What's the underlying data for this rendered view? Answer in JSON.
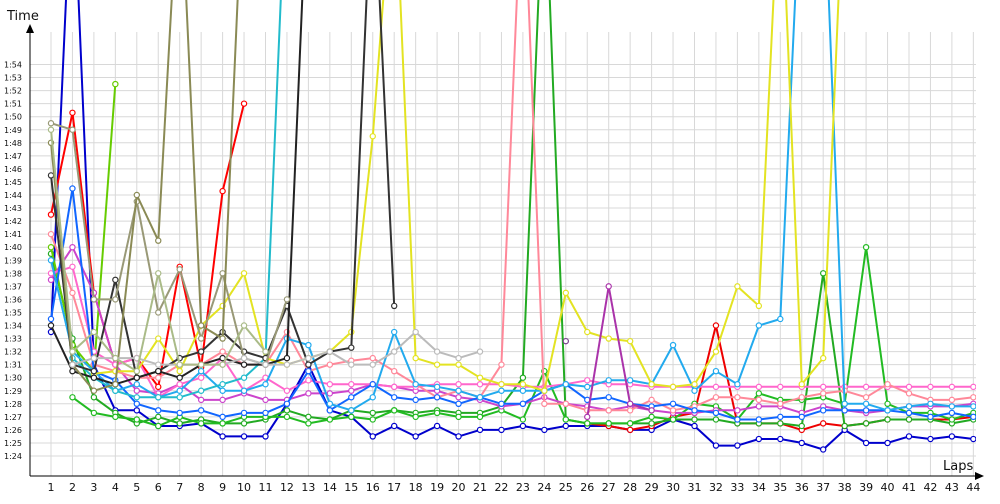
{
  "chart_data": {
    "type": "line",
    "xlabel": "Laps",
    "ylabel": "Time",
    "x": [
      1,
      2,
      3,
      4,
      5,
      6,
      7,
      8,
      9,
      10,
      11,
      12,
      13,
      14,
      15,
      16,
      17,
      18,
      19,
      20,
      21,
      22,
      23,
      24,
      25,
      26,
      27,
      28,
      29,
      30,
      31,
      32,
      33,
      34,
      35,
      36,
      37,
      38,
      39,
      40,
      41,
      42,
      43,
      44
    ],
    "y_ticks": [
      "1:24",
      "1:25",
      "1:26",
      "1:27",
      "1:28",
      "1:29",
      "1:30",
      "1:31",
      "1:32",
      "1:33",
      "1:34",
      "1:35",
      "1:36",
      "1:37",
      "1:38",
      "1:39",
      "1:40",
      "1:41",
      "1:42",
      "1:43",
      "1:44",
      "1:45",
      "1:46",
      "1:47",
      "1:48",
      "1:49",
      "1:50",
      "1:51",
      "1:52",
      "1:53",
      "1:54"
    ],
    "y_tick_seconds": [
      84,
      85,
      86,
      87,
      88,
      89,
      90,
      91,
      92,
      93,
      94,
      95,
      96,
      97,
      98,
      99,
      100,
      101,
      102,
      103,
      104,
      105,
      106,
      107,
      108,
      109,
      110,
      111,
      112,
      113,
      114
    ],
    "ylim_seconds": [
      82.5,
      115
    ],
    "grid": true,
    "legend": "none",
    "series": [
      {
        "color": "#0000cc",
        "values": [
          93.5,
          130,
          91,
          87.5,
          87.5,
          86.3,
          86.3,
          86.5,
          85.5,
          85.5,
          85.5,
          88,
          91,
          87.5,
          87,
          85.5,
          86.3,
          85.5,
          86.3,
          85.5,
          86,
          86,
          86.3,
          86,
          86.3,
          86.3,
          86.3,
          86,
          86,
          86.8,
          86.3,
          84.8,
          84.8,
          85.3,
          85.3,
          85,
          84.5,
          86,
          85,
          85,
          85.5,
          85.3,
          85.5,
          85.3
        ]
      },
      {
        "color": "#ff0000",
        "values": [
          102.5,
          110.3,
          96.5,
          91,
          91.5,
          89.3,
          98.5,
          90.8,
          104.3,
          111,
          null,
          null,
          null,
          null,
          null,
          null,
          null,
          null,
          null,
          null,
          null,
          null,
          null,
          null,
          null,
          null,
          null,
          null,
          null,
          null,
          null,
          null,
          null,
          null,
          null,
          null,
          null,
          null,
          null,
          null,
          null,
          null,
          null,
          null
        ]
      },
      {
        "color": "#ee0000",
        "values": [
          null,
          null,
          null,
          null,
          null,
          null,
          null,
          null,
          null,
          null,
          null,
          null,
          null,
          null,
          null,
          null,
          null,
          null,
          null,
          null,
          null,
          null,
          null,
          null,
          null,
          86.5,
          86.3,
          86,
          86.3,
          87,
          87.3,
          94,
          86.5,
          86.5,
          86.5,
          86,
          86.5,
          86.3,
          86.5,
          86.8,
          86.8,
          86.8,
          86.8,
          87
        ]
      },
      {
        "color": "#22aa22",
        "values": [
          99.5,
          93,
          88.5,
          87.3,
          86.5,
          87,
          86.5,
          86.8,
          86.5,
          86.5,
          86.8,
          87.5,
          87,
          86.8,
          87.5,
          87.3,
          87.5,
          87.3,
          87.5,
          87.3,
          87.3,
          87.8,
          90,
          130,
          86.8,
          86.5,
          86.5,
          86.5,
          86.5,
          86.8,
          86.8,
          86.8,
          86.5,
          86.5,
          86.5,
          86.3,
          98,
          86.3,
          86.5,
          86.8,
          86.8,
          86.8,
          86.5,
          86.8
        ]
      },
      {
        "color": "#22bb22",
        "values": [
          null,
          88.5,
          87.3,
          87,
          86.8,
          86.3,
          87,
          86.5,
          86.5,
          87,
          87,
          87,
          86.5,
          86.8,
          87,
          86.8,
          87.5,
          87,
          87.3,
          87,
          87,
          87.5,
          86.8,
          90.5,
          86.8,
          86.5,
          86.5,
          86.5,
          87,
          86.8,
          88,
          87.8,
          86.8,
          88.8,
          88.3,
          88.3,
          88.5,
          88,
          100,
          88,
          87.3,
          87.3,
          86.8,
          87.3
        ]
      },
      {
        "color": "#66cc00",
        "values": [
          100,
          92.5,
          90.5,
          112.5,
          null,
          null,
          null,
          null,
          null,
          null,
          null,
          null,
          null,
          null,
          null,
          null,
          null,
          null,
          null,
          null,
          null,
          null,
          null,
          null,
          null,
          null,
          null,
          null,
          null,
          null,
          null,
          null,
          null,
          null,
          null,
          null,
          null,
          null,
          null,
          null,
          null,
          null,
          null,
          null
        ]
      },
      {
        "color": "#cc44cc",
        "values": [
          97.5,
          100,
          96.5,
          91,
          89,
          88.8,
          89.5,
          88.3,
          88.3,
          88.8,
          88.3,
          88.3,
          88.8,
          88.8,
          89,
          89.5,
          89.3,
          89,
          89,
          88.5,
          88.3,
          87.8,
          88,
          88.5,
          88,
          87.8,
          87.5,
          87.8,
          87.5,
          87.3,
          87.3,
          87.5,
          87.5,
          87.8,
          87.8,
          87.3,
          87.8,
          87.5,
          87.3,
          87.5,
          87.8,
          87.8,
          87.8,
          88
        ]
      },
      {
        "color": "#ff66cc",
        "values": [
          98,
          98.5,
          92,
          91,
          91.5,
          88.5,
          89.5,
          90,
          91.5,
          89,
          90,
          89,
          89.8,
          89.5,
          89.5,
          89.5,
          89.3,
          89.3,
          89.5,
          89.5,
          89.5,
          89.5,
          89.3,
          89.3,
          89.5,
          89.8,
          89.5,
          89.5,
          89.3,
          89.3,
          89.3,
          89.3,
          89.3,
          89.3,
          89.3,
          89.3,
          89.3,
          89.3,
          89.3,
          89.3,
          89.3,
          89.3,
          89.3,
          89.3
        ]
      },
      {
        "color": "#ff8899",
        "values": [
          101,
          96.5,
          91,
          90.5,
          90,
          90,
          91,
          91,
          92,
          91,
          91,
          93.5,
          90.5,
          91,
          91.3,
          91.5,
          90.5,
          89.5,
          88.5,
          89,
          88.5,
          91,
          130,
          88,
          88,
          87.5,
          87.5,
          87.5,
          88.3,
          87.5,
          87.8,
          88.5,
          88.5,
          88.3,
          88,
          88.5,
          88.8,
          89,
          88.5,
          89.5,
          88.8,
          88.3,
          88.3,
          88.5
        ]
      },
      {
        "color": "#1166ff",
        "values": [
          94.5,
          104.5,
          90.5,
          89.8,
          88,
          87.5,
          87.3,
          87.5,
          87,
          87.3,
          87.3,
          88,
          90.5,
          87.5,
          88.5,
          89.5,
          88.5,
          88.3,
          88.5,
          88,
          88.5,
          88,
          88,
          89,
          89.5,
          88.3,
          88.5,
          88,
          87.8,
          88,
          87.5,
          87.3,
          86.8,
          86.8,
          87,
          87,
          87.5,
          87.5,
          87.5,
          87.5,
          87.3,
          87,
          87.3,
          87
        ]
      },
      {
        "color": "#22aaee",
        "values": [
          99,
          92,
          90.5,
          89,
          89.5,
          88.5,
          89,
          90.5,
          89,
          89,
          89.5,
          93,
          92.5,
          88,
          87.5,
          88.5,
          93.5,
          89.5,
          89.3,
          89,
          88.5,
          89,
          89,
          89,
          89.5,
          89.3,
          89.8,
          89.8,
          89.5,
          92.5,
          89,
          90.5,
          89.5,
          94,
          94.5,
          130,
          130,
          88,
          88,
          87.5,
          87.8,
          88,
          87.8,
          87.8
        ]
      },
      {
        "color": "#22bbcc",
        "values": [
          null,
          91.5,
          90,
          89,
          88.5,
          88.5,
          88.5,
          89,
          89.5,
          90,
          91.5,
          130,
          null,
          null,
          null,
          null,
          null,
          null,
          null,
          null,
          null,
          null,
          null,
          null,
          null,
          null,
          null,
          null,
          null,
          null,
          null,
          null,
          null,
          null,
          null,
          null,
          null,
          null,
          null,
          null,
          null,
          null,
          null,
          null
        ]
      },
      {
        "color": "#e3e322",
        "values": [
          null,
          null,
          90.3,
          90.5,
          90.5,
          93,
          90.5,
          94,
          95.5,
          98,
          91.5,
          91,
          91.5,
          92,
          93.5,
          108.5,
          130,
          91.5,
          91,
          91,
          90,
          89.5,
          89.5,
          89,
          96.5,
          93.5,
          93,
          92.8,
          89.5,
          89.3,
          89.5,
          92,
          97,
          95.5,
          130,
          89.5,
          91.5,
          130,
          null,
          null,
          null,
          null,
          null,
          null
        ]
      },
      {
        "color": "#333333",
        "values": [
          105.5,
          91,
          90.5,
          97.5,
          90,
          90.5,
          91.5,
          92,
          93.5,
          92,
          91.5,
          95.5,
          91,
          92,
          92.3,
          130,
          95.5,
          null,
          null,
          null,
          null,
          null,
          null,
          null,
          null,
          null,
          null,
          null,
          null,
          null,
          null,
          null,
          null,
          null,
          null,
          null,
          null,
          null,
          null,
          null,
          null,
          null,
          null,
          null
        ]
      },
      {
        "color": "#222222",
        "values": [
          94,
          90.5,
          90,
          89.5,
          90,
          90.5,
          90,
          91,
          91.5,
          91,
          91,
          91.5,
          130,
          null,
          null,
          null,
          null,
          null,
          null,
          null,
          null,
          null,
          null,
          null,
          null,
          null,
          null,
          null,
          null,
          null,
          null,
          null,
          null,
          null,
          null,
          null,
          null,
          null,
          null,
          null,
          null,
          null,
          null,
          null
        ]
      },
      {
        "color": "#999977",
        "values": [
          109.5,
          109,
          96,
          96,
          103.5,
          95,
          98.3,
          93,
          98,
          91.5,
          91,
          96,
          null,
          null,
          null,
          null,
          null,
          null,
          null,
          null,
          null,
          null,
          null,
          null,
          null,
          null,
          null,
          null,
          null,
          null,
          null,
          null,
          null,
          null,
          null,
          null,
          null,
          null,
          null,
          null,
          null,
          null,
          null,
          null
        ]
      },
      {
        "color": "#8a8a55",
        "values": [
          108,
          91,
          89,
          89.5,
          104,
          100.5,
          130,
          94,
          93,
          130,
          null,
          null,
          null,
          null,
          null,
          null,
          null,
          null,
          null,
          null,
          null,
          null,
          null,
          null,
          null,
          null,
          null,
          null,
          null,
          null,
          null,
          null,
          null,
          null,
          null,
          null,
          null,
          null,
          null,
          null,
          null,
          null,
          null,
          null
        ]
      },
      {
        "color": "#bbbbbb",
        "values": [
          null,
          91,
          91.5,
          91.5,
          91.5,
          91,
          91,
          91,
          91,
          91.5,
          91,
          91,
          91.5,
          92,
          91,
          91,
          92,
          93.5,
          92,
          91.5,
          92,
          null,
          null,
          null,
          null,
          null,
          null,
          null,
          null,
          null,
          null,
          null,
          null,
          null,
          null,
          null,
          null,
          null,
          null,
          null,
          null,
          null,
          null,
          null
        ]
      },
      {
        "color": "#aabb88",
        "values": [
          109,
          92,
          93.5,
          91.5,
          90.5,
          98,
          91,
          91,
          91,
          94,
          92,
          null,
          null,
          null,
          null,
          null,
          null,
          null,
          null,
          null,
          null,
          null,
          null,
          null,
          null,
          null,
          null,
          null,
          null,
          null,
          null,
          null,
          null,
          null,
          null,
          null,
          null,
          null,
          null,
          null,
          null,
          null,
          null,
          null
        ]
      },
      {
        "color": "#7b3f8f",
        "values": [
          null,
          null,
          null,
          null,
          null,
          null,
          null,
          null,
          null,
          null,
          null,
          null,
          null,
          null,
          null,
          null,
          null,
          null,
          null,
          null,
          null,
          null,
          null,
          null,
          92.8,
          null,
          null,
          null,
          null,
          null,
          null,
          null,
          null,
          null,
          null,
          null,
          null,
          null,
          null,
          null,
          null,
          null,
          null,
          null
        ]
      },
      {
        "color": "#aa33aa",
        "values": [
          null,
          null,
          null,
          null,
          null,
          null,
          null,
          null,
          null,
          null,
          null,
          null,
          null,
          null,
          null,
          null,
          null,
          null,
          null,
          null,
          null,
          null,
          null,
          null,
          null,
          87,
          97,
          88,
          87.5,
          null,
          null,
          null,
          null,
          null,
          null,
          null,
          null,
          null,
          null,
          null,
          null,
          null,
          null,
          null
        ]
      }
    ]
  }
}
